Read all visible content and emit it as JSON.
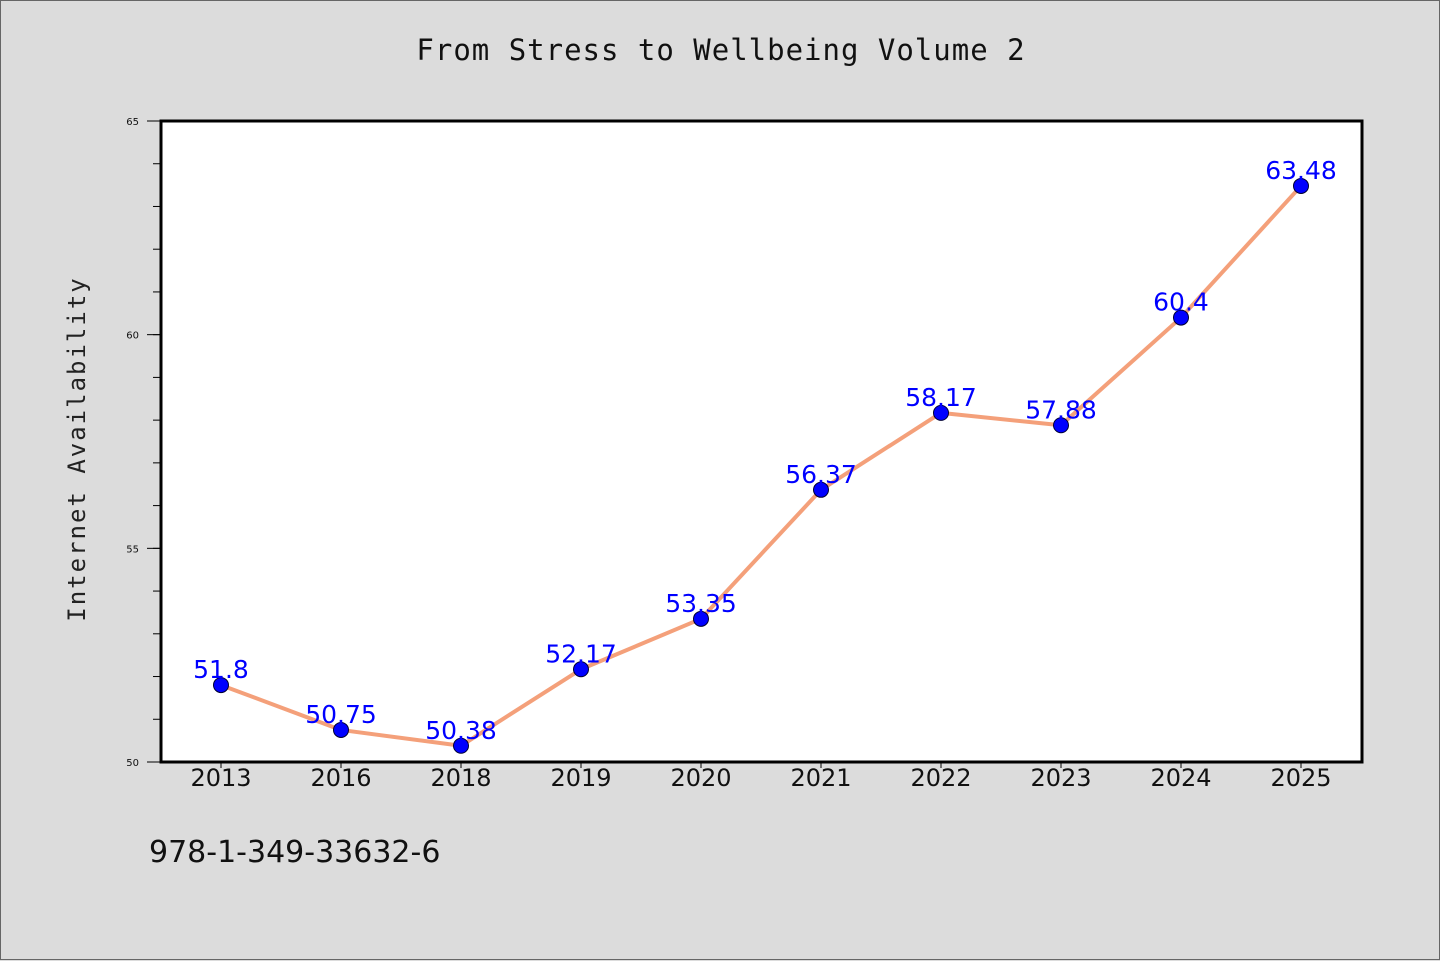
{
  "title": "From Stress to Wellbeing Volume 2",
  "isbn": "978-1-349-33632-6",
  "chart_data": {
    "type": "line",
    "title": "From Stress to Wellbeing Volume 2",
    "xlabel": "",
    "ylabel": "Internet Availability",
    "categories": [
      "2013",
      "2016",
      "2018",
      "2019",
      "2020",
      "2021",
      "2022",
      "2023",
      "2024",
      "2025"
    ],
    "values": [
      51.8,
      50.75,
      50.38,
      52.17,
      53.35,
      56.37,
      58.17,
      57.88,
      60.4,
      63.48
    ],
    "data_labels": [
      "51.8",
      "50.75",
      "50.38",
      "52.17",
      "53.35",
      "56.37",
      "58.17",
      "57.88",
      "60.4",
      "63.48"
    ],
    "ylim": [
      50,
      65
    ],
    "y_major_ticks": [
      50,
      55,
      60,
      65
    ],
    "y_minor_step": 1,
    "grid": false,
    "line_color": "#f4a07a",
    "marker_color": "#0000ff",
    "label_color": "#0000ff",
    "background_color": "#dcdcdc",
    "plot_background_color": "#ffffff"
  }
}
